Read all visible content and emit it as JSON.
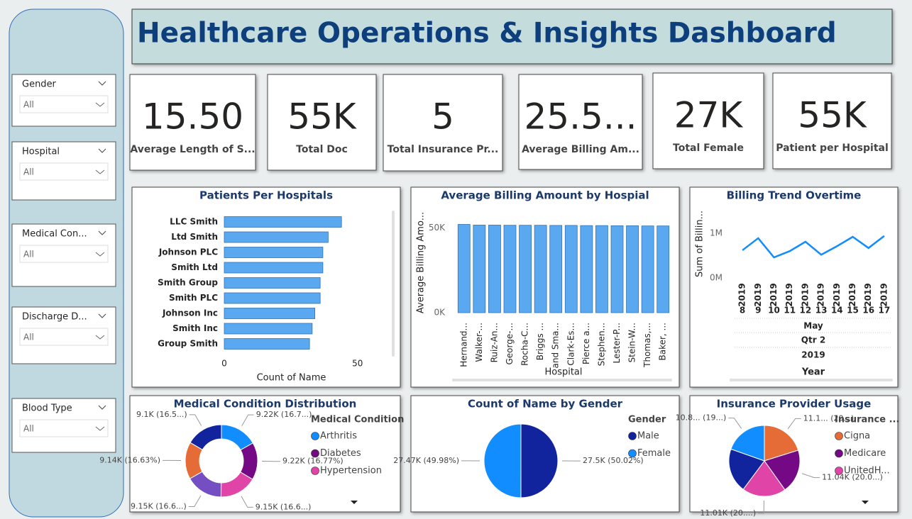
{
  "header": {
    "title": "Healthcare Operations & Insights Dashboard"
  },
  "slicers": [
    {
      "label": "Gender",
      "value": "All"
    },
    {
      "label": "Hospital",
      "value": "All"
    },
    {
      "label": "Medical Con...",
      "value": "All"
    },
    {
      "label": "Discharge D...",
      "value": "All"
    },
    {
      "label": "Blood Type",
      "value": "All"
    }
  ],
  "kpis": [
    {
      "value": "15.50",
      "label": "Average Length of S..."
    },
    {
      "value": "55K",
      "label": "Total Doc"
    },
    {
      "value": "5",
      "label": "Total Insurance Pr..."
    },
    {
      "value": "25.5...",
      "label": "Average Billing Am..."
    },
    {
      "value": "27K",
      "label": "Total Female"
    },
    {
      "value": "55K",
      "label": "Patient per Hospital"
    }
  ],
  "chart_data": [
    {
      "type": "hbar",
      "title": "Patients Per Hospitals",
      "categories": [
        "LLC Smith",
        "Ltd Smith",
        "Johnson PLC",
        "Smith Ltd",
        "Smith Group",
        "Smith PLC",
        "Johnson Inc",
        "Smith Inc",
        "Group Smith"
      ],
      "values": [
        44,
        39,
        37,
        37,
        36,
        36,
        34,
        33,
        32
      ],
      "color": "#5aa8f0",
      "xlim": [
        0,
        61
      ],
      "xticks": [
        0,
        50
      ],
      "xlabel": "Count of Name"
    },
    {
      "type": "bar",
      "title": "Average Billing Amount by Hospial",
      "categories": [
        "Hernand...",
        "Walker-...",
        "Ruiz-An...",
        "George-...",
        "Rocha-C...",
        "Briggs ...",
        "and Sma...",
        "Clark-Es...",
        "Pierce a...",
        "Stephen...",
        "Lester-P...",
        "Stein-W...",
        "Thomas,...",
        "Baker, ..."
      ],
      "values": [
        52100,
        51700,
        51700,
        51600,
        51600,
        51600,
        51500,
        51500,
        51400,
        51400,
        51300,
        51300,
        51200,
        51200
      ],
      "color": "#5aa8f0",
      "ylim": [
        0,
        59000
      ],
      "yticks": [
        {
          "value": 0,
          "label": "0K"
        },
        {
          "value": 50000,
          "label": "50K"
        }
      ],
      "xlabel": "Hospital",
      "ylabel": "Average Billing Amo..."
    },
    {
      "type": "line",
      "title": "Billing Trend Overtime",
      "categories": [
        "8",
        "9",
        "10",
        "11",
        "12",
        "13",
        "14",
        "15",
        "16",
        "17"
      ],
      "category_years": [
        "2019",
        "2019",
        "2019",
        "2019",
        "2019",
        "2019",
        "2019",
        "2019",
        "2019",
        "2019"
      ],
      "month": "May",
      "quarter": "Qtr 2",
      "year": "2019",
      "values": [
        620000,
        890000,
        460000,
        600000,
        810000,
        520000,
        710000,
        920000,
        670000,
        940000
      ],
      "color": "#118dff",
      "ylim": [
        0,
        1460000
      ],
      "yticks": [
        {
          "value": 0,
          "label": "0M"
        },
        {
          "value": 1000000,
          "label": "1M"
        }
      ],
      "xlabel": "Year",
      "ylabel": "Sum of Billin..."
    },
    {
      "type": "donut",
      "title": "Medical Condition Distribution",
      "legend_title": "Medical Condition",
      "legend": [
        "Arthritis",
        "Diabetes",
        "Hypertension"
      ],
      "values": [
        9220,
        9220,
        9150,
        9150,
        9140,
        9100
      ],
      "value_labels": [
        "9.22K (16.7...)",
        "9.22K (16.77%)",
        "9.15K (16.6...)",
        "9.15K (16.6...)",
        "9.14K (16.63%)",
        "9.1K (16.5...)"
      ],
      "colors": [
        "#118dff",
        "#750985",
        "#e044a7",
        "#744ec2",
        "#e66c37",
        "#12239e"
      ]
    },
    {
      "type": "pie",
      "title": "Count of Name by Gender",
      "legend_title": "Gender",
      "legend": [
        "Male",
        "Female"
      ],
      "values": [
        27500,
        27470
      ],
      "value_labels": [
        "27.5K (50.02%)",
        "27.47K (49.98%)"
      ],
      "colors": [
        "#12239e",
        "#118dff"
      ]
    },
    {
      "type": "pie",
      "title": "Insurance Provider Usage",
      "legend_title": "Insurance ...",
      "legend": [
        "Cigna",
        "Medicare",
        "UnitedH..."
      ],
      "values": [
        11100,
        11040,
        11010,
        11150,
        10800
      ],
      "value_labels": [
        "11.1... (20...)",
        "11.04K (20.0...)",
        "11.01K (20....)",
        null,
        "10.8... (19...)"
      ],
      "colors": [
        "#e66c37",
        "#750985",
        "#e044a7",
        "#12239e",
        "#118dff"
      ]
    }
  ]
}
